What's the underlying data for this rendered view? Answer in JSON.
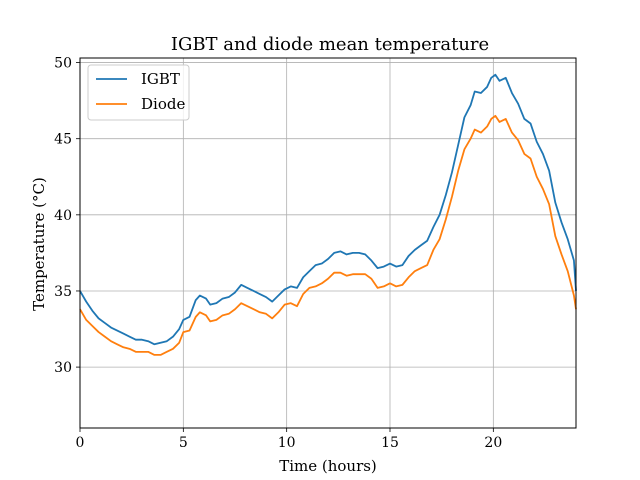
{
  "chart_data": {
    "type": "line",
    "title": "IGBT and diode mean temperature",
    "xlabel": "Time (hours)",
    "ylabel": "Temperature (°C)",
    "xlim": [
      0,
      24
    ],
    "ylim": [
      26,
      50.3
    ],
    "xticks": [
      0,
      5,
      10,
      15,
      20
    ],
    "yticks": [
      30,
      35,
      40,
      45,
      50
    ],
    "grid": true,
    "legend_position": "top-left",
    "series": [
      {
        "name": "IGBT",
        "color": "#1f77b4",
        "points": [
          [
            0.0,
            35.0
          ],
          [
            0.3,
            34.3
          ],
          [
            0.6,
            33.7
          ],
          [
            0.9,
            33.2
          ],
          [
            1.2,
            32.9
          ],
          [
            1.5,
            32.6
          ],
          [
            1.8,
            32.4
          ],
          [
            2.1,
            32.2
          ],
          [
            2.4,
            32.0
          ],
          [
            2.7,
            31.8
          ],
          [
            3.0,
            31.8
          ],
          [
            3.3,
            31.7
          ],
          [
            3.6,
            31.5
          ],
          [
            3.9,
            31.6
          ],
          [
            4.2,
            31.7
          ],
          [
            4.5,
            32.0
          ],
          [
            4.8,
            32.5
          ],
          [
            5.0,
            33.1
          ],
          [
            5.3,
            33.3
          ],
          [
            5.6,
            34.4
          ],
          [
            5.8,
            34.7
          ],
          [
            6.1,
            34.5
          ],
          [
            6.3,
            34.1
          ],
          [
            6.6,
            34.2
          ],
          [
            6.9,
            34.5
          ],
          [
            7.2,
            34.6
          ],
          [
            7.5,
            34.9
          ],
          [
            7.8,
            35.4
          ],
          [
            8.1,
            35.2
          ],
          [
            8.4,
            35.0
          ],
          [
            8.7,
            34.8
          ],
          [
            9.0,
            34.6
          ],
          [
            9.3,
            34.3
          ],
          [
            9.6,
            34.7
          ],
          [
            9.9,
            35.1
          ],
          [
            10.2,
            35.3
          ],
          [
            10.5,
            35.2
          ],
          [
            10.8,
            35.9
          ],
          [
            11.1,
            36.3
          ],
          [
            11.4,
            36.7
          ],
          [
            11.7,
            36.8
          ],
          [
            12.0,
            37.1
          ],
          [
            12.3,
            37.5
          ],
          [
            12.6,
            37.6
          ],
          [
            12.9,
            37.4
          ],
          [
            13.2,
            37.5
          ],
          [
            13.5,
            37.5
          ],
          [
            13.8,
            37.4
          ],
          [
            14.1,
            37.0
          ],
          [
            14.4,
            36.5
          ],
          [
            14.7,
            36.6
          ],
          [
            15.0,
            36.8
          ],
          [
            15.3,
            36.6
          ],
          [
            15.6,
            36.7
          ],
          [
            15.9,
            37.3
          ],
          [
            16.2,
            37.7
          ],
          [
            16.5,
            38.0
          ],
          [
            16.8,
            38.3
          ],
          [
            17.1,
            39.2
          ],
          [
            17.4,
            40.0
          ],
          [
            17.7,
            41.3
          ],
          [
            18.0,
            42.8
          ],
          [
            18.3,
            44.6
          ],
          [
            18.6,
            46.4
          ],
          [
            18.9,
            47.2
          ],
          [
            19.1,
            48.1
          ],
          [
            19.4,
            48.0
          ],
          [
            19.7,
            48.4
          ],
          [
            19.9,
            49.0
          ],
          [
            20.1,
            49.2
          ],
          [
            20.3,
            48.8
          ],
          [
            20.6,
            49.0
          ],
          [
            20.9,
            48.0
          ],
          [
            21.2,
            47.3
          ],
          [
            21.5,
            46.3
          ],
          [
            21.8,
            46.0
          ],
          [
            22.1,
            44.8
          ],
          [
            22.4,
            44.0
          ],
          [
            22.7,
            42.9
          ],
          [
            23.0,
            40.8
          ],
          [
            23.3,
            39.5
          ],
          [
            23.6,
            38.4
          ],
          [
            23.9,
            37.0
          ],
          [
            24.0,
            35.0
          ]
        ]
      },
      {
        "name": "Diode",
        "color": "#ff7f0e",
        "points": [
          [
            0.0,
            33.8
          ],
          [
            0.3,
            33.1
          ],
          [
            0.6,
            32.7
          ],
          [
            0.9,
            32.3
          ],
          [
            1.2,
            32.0
          ],
          [
            1.5,
            31.7
          ],
          [
            1.8,
            31.5
          ],
          [
            2.1,
            31.3
          ],
          [
            2.4,
            31.2
          ],
          [
            2.7,
            31.0
          ],
          [
            3.0,
            31.0
          ],
          [
            3.3,
            31.0
          ],
          [
            3.6,
            30.8
          ],
          [
            3.9,
            30.8
          ],
          [
            4.2,
            31.0
          ],
          [
            4.5,
            31.2
          ],
          [
            4.8,
            31.6
          ],
          [
            5.0,
            32.3
          ],
          [
            5.3,
            32.4
          ],
          [
            5.6,
            33.3
          ],
          [
            5.8,
            33.6
          ],
          [
            6.1,
            33.4
          ],
          [
            6.3,
            33.0
          ],
          [
            6.6,
            33.1
          ],
          [
            6.9,
            33.4
          ],
          [
            7.2,
            33.5
          ],
          [
            7.5,
            33.8
          ],
          [
            7.8,
            34.2
          ],
          [
            8.1,
            34.0
          ],
          [
            8.4,
            33.8
          ],
          [
            8.7,
            33.6
          ],
          [
            9.0,
            33.5
          ],
          [
            9.3,
            33.2
          ],
          [
            9.6,
            33.6
          ],
          [
            9.9,
            34.1
          ],
          [
            10.2,
            34.2
          ],
          [
            10.5,
            34.0
          ],
          [
            10.8,
            34.8
          ],
          [
            11.1,
            35.2
          ],
          [
            11.4,
            35.3
          ],
          [
            11.7,
            35.5
          ],
          [
            12.0,
            35.8
          ],
          [
            12.3,
            36.2
          ],
          [
            12.6,
            36.2
          ],
          [
            12.9,
            36.0
          ],
          [
            13.2,
            36.1
          ],
          [
            13.5,
            36.1
          ],
          [
            13.8,
            36.1
          ],
          [
            14.1,
            35.8
          ],
          [
            14.4,
            35.2
          ],
          [
            14.7,
            35.3
          ],
          [
            15.0,
            35.5
          ],
          [
            15.3,
            35.3
          ],
          [
            15.6,
            35.4
          ],
          [
            15.9,
            35.9
          ],
          [
            16.2,
            36.3
          ],
          [
            16.5,
            36.5
          ],
          [
            16.8,
            36.7
          ],
          [
            17.1,
            37.7
          ],
          [
            17.4,
            38.4
          ],
          [
            17.7,
            39.7
          ],
          [
            18.0,
            41.2
          ],
          [
            18.3,
            42.9
          ],
          [
            18.6,
            44.3
          ],
          [
            18.9,
            45.0
          ],
          [
            19.1,
            45.6
          ],
          [
            19.4,
            45.4
          ],
          [
            19.7,
            45.8
          ],
          [
            19.9,
            46.3
          ],
          [
            20.1,
            46.5
          ],
          [
            20.3,
            46.1
          ],
          [
            20.6,
            46.3
          ],
          [
            20.9,
            45.4
          ],
          [
            21.2,
            44.9
          ],
          [
            21.5,
            44.0
          ],
          [
            21.8,
            43.7
          ],
          [
            22.1,
            42.5
          ],
          [
            22.4,
            41.7
          ],
          [
            22.7,
            40.7
          ],
          [
            23.0,
            38.6
          ],
          [
            23.3,
            37.4
          ],
          [
            23.6,
            36.3
          ],
          [
            23.9,
            34.7
          ],
          [
            24.0,
            33.8
          ]
        ]
      }
    ]
  }
}
